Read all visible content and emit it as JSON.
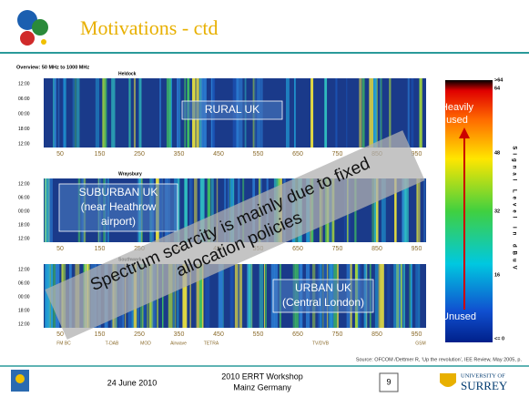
{
  "header": {
    "title": "Motivations - ctd"
  },
  "figure": {
    "overview": "Overview: 50 MHz to 1000 MHz",
    "time_labels": [
      "12:00",
      "06:00",
      "00:00",
      "18:00",
      "12:00"
    ],
    "freq_labels": [
      "50",
      "150",
      "250",
      "350",
      "450",
      "550",
      "650",
      "750",
      "850",
      "950"
    ],
    "panels": [
      {
        "site": "Heldock",
        "box": [
          "RURAL UK"
        ]
      },
      {
        "site": "Wraysbury",
        "box": [
          "SUBURBAN UK",
          "(near Heathrow",
          "airport)"
        ]
      },
      {
        "site": "Southwark",
        "box": [
          "URBAN UK",
          "(Central London)"
        ]
      }
    ],
    "band_labels": [
      "FM BC",
      "T-DAB",
      "MOD",
      "Airwave",
      "TETRA",
      "TV/DVB",
      "GSM"
    ],
    "scale_labels": [
      ">64",
      "64",
      "48",
      "32",
      "16",
      "<= 0"
    ],
    "scale_title": "Signal Level in dBuV",
    "heavy": [
      "Heavily",
      "used"
    ],
    "unused": "Unused",
    "overlay": [
      "Spectrum scarcity is mainly due to fixed",
      "allocation policies"
    ],
    "source": "Source: OFCOM /Dettmer R, ‘Up the revolution’, IEE Review, May 2005, p."
  },
  "footer": {
    "date": "24 June 2010",
    "event": [
      "2010 ERRT Workshop",
      "Mainz Germany"
    ],
    "page": "9",
    "university": [
      "UNIVERSITY OF",
      "SURREY"
    ]
  }
}
